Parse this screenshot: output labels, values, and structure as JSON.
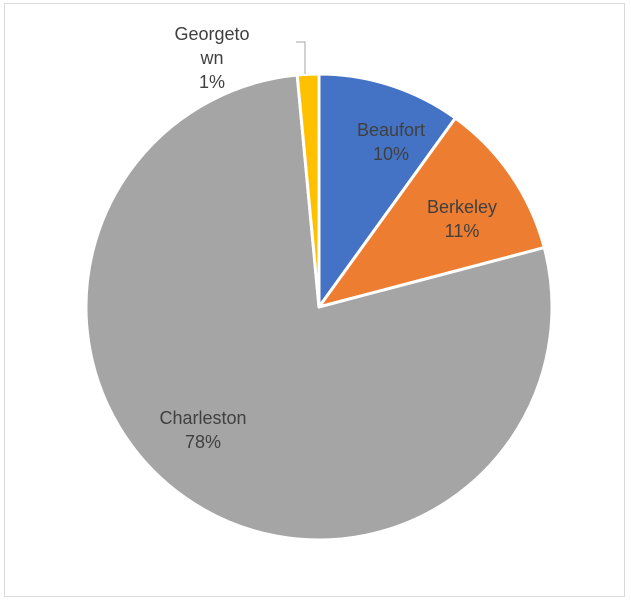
{
  "chart_data": {
    "type": "pie",
    "title": "",
    "slices": [
      {
        "label_lines": [
          "Beaufort"
        ],
        "percent_label": "10%",
        "value": 10,
        "color": "#4472c4",
        "label_color": "#404040"
      },
      {
        "label_lines": [
          "Berkeley"
        ],
        "percent_label": "11%",
        "value": 11,
        "color": "#ed7d31",
        "label_color": "#404040"
      },
      {
        "label_lines": [
          "Charleston"
        ],
        "percent_label": "78%",
        "value": 78,
        "color": "#a5a5a5",
        "label_color": "#404040"
      },
      {
        "label_lines": [
          "Georgeto",
          "wn"
        ],
        "percent_label": "1%",
        "value": 1.5,
        "color": "#ffc000",
        "label_color": "#404040"
      }
    ],
    "slice_border_color": "#ffffff",
    "leader_line_color": "#a6a6a6",
    "legend": "none"
  }
}
